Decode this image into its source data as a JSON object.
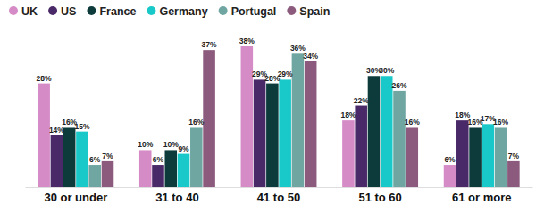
{
  "chart_data": {
    "type": "bar",
    "categories": [
      "30 or under",
      "31 to 40",
      "41 to 50",
      "51 to 60",
      "61 or more"
    ],
    "series": [
      {
        "name": "UK",
        "color": "#d48bc6",
        "values": [
          28,
          10,
          38,
          18,
          6
        ],
        "value_labels": [
          "28%",
          "10%",
          "38%",
          "18%",
          "6%"
        ]
      },
      {
        "name": "US",
        "color": "#4a2968",
        "values": [
          14,
          6,
          29,
          22,
          18
        ],
        "value_labels": [
          "14%",
          "6%",
          "29%",
          "22%",
          "18%"
        ]
      },
      {
        "name": "France",
        "color": "#0d3b3c",
        "values": [
          16,
          10,
          28,
          30,
          16
        ],
        "value_labels": [
          "16%",
          "10%",
          "28%",
          "30%",
          "16%"
        ]
      },
      {
        "name": "Germany",
        "color": "#19c8c8",
        "values": [
          15,
          9,
          29,
          30,
          17
        ],
        "value_labels": [
          "15%",
          "9%",
          "29%",
          "30%",
          "17%"
        ]
      },
      {
        "name": "Portugal",
        "color": "#6fa6a1",
        "values": [
          6,
          16,
          36,
          26,
          16
        ],
        "value_labels": [
          "6%",
          "16%",
          "36%",
          "26%",
          "16%"
        ]
      },
      {
        "name": "Spain",
        "color": "#8b5a7c",
        "values": [
          7,
          37,
          34,
          16,
          7
        ],
        "value_labels": [
          "7%",
          "37%",
          "34%",
          "16%",
          "7%"
        ]
      }
    ],
    "data_labels": true,
    "tick_labels": "x",
    "legend": "top-left"
  }
}
